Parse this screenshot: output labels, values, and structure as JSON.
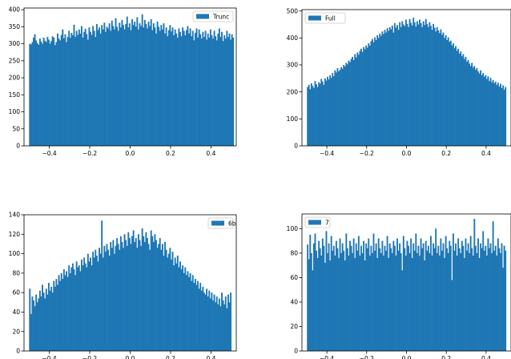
{
  "figure": {
    "bar_color": "#1f77b4"
  },
  "chart_data": [
    {
      "type": "bar",
      "legend": "Trunc",
      "legend_position": "top-right",
      "grid": false,
      "xlim": [
        -0.525,
        0.525
      ],
      "ylim": [
        0,
        405
      ],
      "xticks": [
        -0.4,
        -0.2,
        0.0,
        0.2,
        0.4
      ],
      "xtick_labels": [
        "−0.4",
        "−0.2",
        "0.0",
        "0.2",
        "0.4"
      ],
      "yticks": [
        0,
        50,
        100,
        150,
        200,
        250,
        300,
        350,
        400
      ],
      "ytick_labels": [
        "0",
        "50",
        "100",
        "150",
        "200",
        "250",
        "300",
        "350",
        "400"
      ],
      "bin_start": -0.5,
      "bin_width": 0.00625,
      "values": [
        300,
        298,
        305,
        318,
        328,
        310,
        302,
        297,
        315,
        306,
        300,
        318,
        309,
        305,
        320,
        312,
        300,
        308,
        322,
        318,
        296,
        305,
        330,
        315,
        310,
        326,
        342,
        316,
        328,
        305,
        320,
        338,
        318,
        332,
        325,
        356,
        320,
        338,
        326,
        342,
        330,
        352,
        318,
        335,
        344,
        328,
        312,
        348,
        335,
        326,
        352,
        338,
        320,
        358,
        340,
        348,
        330,
        355,
        342,
        362,
        335,
        350,
        345,
        360,
        338,
        368,
        352,
        342,
        375,
        350,
        338,
        362,
        348,
        370,
        355,
        342,
        358,
        380,
        348,
        360,
        340,
        372,
        355,
        365,
        350,
        378,
        342,
        360,
        352,
        386,
        348,
        370,
        358,
        345,
        365,
        352,
        372,
        340,
        360,
        348,
        330,
        365,
        350,
        338,
        355,
        342,
        360,
        330,
        348,
        322,
        340,
        355,
        336,
        348,
        325,
        342,
        330,
        318,
        345,
        335,
        322,
        348,
        338,
        325,
        340,
        352,
        330,
        345,
        322,
        338,
        310,
        332,
        345,
        318,
        342,
        328,
        315,
        335,
        320,
        338,
        312,
        330,
        318,
        342,
        325,
        315,
        338,
        322,
        310,
        330,
        345,
        320,
        335,
        308,
        325,
        315,
        338,
        320,
        330,
        312,
        328,
        318
      ]
    },
    {
      "type": "bar",
      "legend": "Full",
      "legend_position": "top-left",
      "grid": false,
      "xlim": [
        -0.525,
        0.525
      ],
      "ylim": [
        0,
        505
      ],
      "xticks": [
        -0.4,
        -0.2,
        0.0,
        0.2,
        0.4
      ],
      "xtick_labels": [
        "−0.4",
        "−0.2",
        "0.0",
        "0.2",
        "0.4"
      ],
      "yticks": [
        0,
        100,
        200,
        300,
        400,
        500
      ],
      "ytick_labels": [
        "0",
        "100",
        "200",
        "300",
        "400",
        "500"
      ],
      "bin_start": -0.5,
      "bin_width": 0.00625,
      "values": [
        218,
        226,
        210,
        232,
        222,
        214,
        240,
        228,
        218,
        236,
        230,
        248,
        238,
        226,
        250,
        242,
        256,
        246,
        262,
        252,
        270,
        258,
        280,
        272,
        288,
        276,
        282,
        292,
        286,
        300,
        294,
        308,
        302,
        316,
        310,
        322,
        330,
        318,
        340,
        328,
        346,
        338,
        352,
        360,
        348,
        366,
        358,
        372,
        364,
        380,
        372,
        388,
        396,
        384,
        402,
        392,
        410,
        400,
        416,
        408,
        424,
        414,
        430,
        420,
        436,
        426,
        440,
        432,
        446,
        420,
        455,
        438,
        448,
        430,
        458,
        440,
        462,
        450,
        444,
        468,
        452,
        440,
        470,
        456,
        446,
        475,
        458,
        442,
        462,
        450,
        468,
        455,
        440,
        462,
        448,
        470,
        452,
        440,
        458,
        445,
        430,
        452,
        438,
        424,
        440,
        428,
        418,
        432,
        412,
        420,
        400,
        410,
        392,
        402,
        385,
        390,
        372,
        380,
        362,
        370,
        352,
        360,
        342,
        350,
        332,
        340,
        322,
        330,
        312,
        318,
        305,
        296,
        308,
        290,
        296,
        282,
        288,
        276,
        268,
        280,
        262,
        270,
        256,
        262,
        248,
        258,
        240,
        252,
        236,
        244,
        232,
        238,
        226,
        234,
        220,
        230,
        214,
        224,
        208,
        218
      ]
    },
    {
      "type": "bar",
      "legend": "6b",
      "legend_position": "top-right",
      "grid": false,
      "xlim": [
        -0.525,
        0.525
      ],
      "ylim": [
        0,
        140
      ],
      "xticks": [
        -0.4,
        -0.2,
        0.0,
        0.2,
        0.4
      ],
      "xtick_labels": [
        "−0.4",
        "−0.2",
        "0.0",
        "0.2",
        "0.4"
      ],
      "yticks": [
        0,
        20,
        40,
        60,
        80,
        100,
        120,
        140
      ],
      "ytick_labels": [
        "0",
        "20",
        "40",
        "60",
        "80",
        "100",
        "120",
        "140"
      ],
      "bin_start": -0.5,
      "bin_width": 0.00625,
      "values": [
        64,
        38,
        56,
        52,
        46,
        58,
        50,
        54,
        62,
        56,
        68,
        60,
        54,
        64,
        58,
        70,
        62,
        66,
        60,
        72,
        66,
        74,
        68,
        78,
        72,
        80,
        74,
        84,
        78,
        82,
        76,
        88,
        80,
        86,
        90,
        84,
        78,
        92,
        86,
        88,
        82,
        94,
        88,
        96,
        90,
        86,
        100,
        92,
        96,
        88,
        102,
        96,
        104,
        98,
        92,
        106,
        100,
        134,
        96,
        108,
        102,
        110,
        104,
        98,
        112,
        106,
        114,
        100,
        108,
        116,
        110,
        104,
        118,
        112,
        106,
        120,
        114,
        108,
        122,
        116,
        110,
        118,
        124,
        112,
        116,
        106,
        120,
        114,
        108,
        126,
        118,
        112,
        122,
        116,
        110,
        104,
        124,
        118,
        112,
        120,
        114,
        106,
        110,
        116,
        104,
        110,
        98,
        112,
        104,
        96,
        100,
        106,
        94,
        102,
        88,
        96,
        90,
        98,
        86,
        92,
        84,
        88,
        80,
        86,
        78,
        82,
        76,
        80,
        72,
        78,
        70,
        74,
        68,
        72,
        64,
        70,
        62,
        66,
        60,
        58,
        64,
        56,
        62,
        54,
        60,
        52,
        58,
        50,
        56,
        48,
        54,
        46,
        60,
        52,
        48,
        56,
        44,
        58,
        50,
        60
      ]
    },
    {
      "type": "bar",
      "legend": "7",
      "legend_position": "top-left",
      "grid": false,
      "xlim": [
        -0.525,
        0.525
      ],
      "ylim": [
        0,
        112
      ],
      "xticks": [
        -0.4,
        -0.2,
        0.0,
        0.2,
        0.4
      ],
      "xtick_labels": [
        "−0.4",
        "−0.2",
        "0.0",
        "0.2",
        "0.4"
      ],
      "yticks": [
        0,
        20,
        40,
        60,
        80,
        100
      ],
      "ytick_labels": [
        "0",
        "20",
        "40",
        "60",
        "80",
        "100"
      ],
      "bin_start": -0.5,
      "bin_width": 0.00625,
      "values": [
        87,
        75,
        95,
        80,
        66,
        88,
        96,
        82,
        76,
        90,
        84,
        78,
        92,
        86,
        72,
        98,
        80,
        88,
        74,
        94,
        82,
        86,
        78,
        90,
        84,
        76,
        92,
        80,
        88,
        82,
        74,
        96,
        84,
        78,
        90,
        86,
        80,
        92,
        76,
        88,
        82,
        94,
        78,
        86,
        80,
        90,
        74,
        88,
        84,
        92,
        78,
        86,
        80,
        96,
        82,
        88,
        76,
        92,
        84,
        80,
        90,
        78,
        86,
        82,
        94,
        76,
        88,
        84,
        80,
        90,
        86,
        78,
        92,
        82,
        88,
        80,
        66,
        94,
        84,
        78,
        90,
        86,
        80,
        92,
        76,
        88,
        82,
        96,
        80,
        86,
        78,
        92,
        84,
        88,
        74,
        90,
        82,
        86,
        80,
        94,
        78,
        88,
        84,
        100,
        80,
        86,
        78,
        92,
        82,
        88,
        76,
        94,
        84,
        80,
        90,
        86,
        58,
        96,
        82,
        88,
        78,
        92,
        84,
        80,
        90,
        86,
        76,
        92,
        82,
        88,
        80,
        94,
        84,
        78,
        108,
        86,
        80,
        92,
        76,
        88,
        84,
        98,
        82,
        86,
        78,
        92,
        84,
        88,
        80,
        106,
        82,
        86,
        78,
        92,
        84,
        80,
        88,
        68,
        86,
        82
      ]
    }
  ]
}
